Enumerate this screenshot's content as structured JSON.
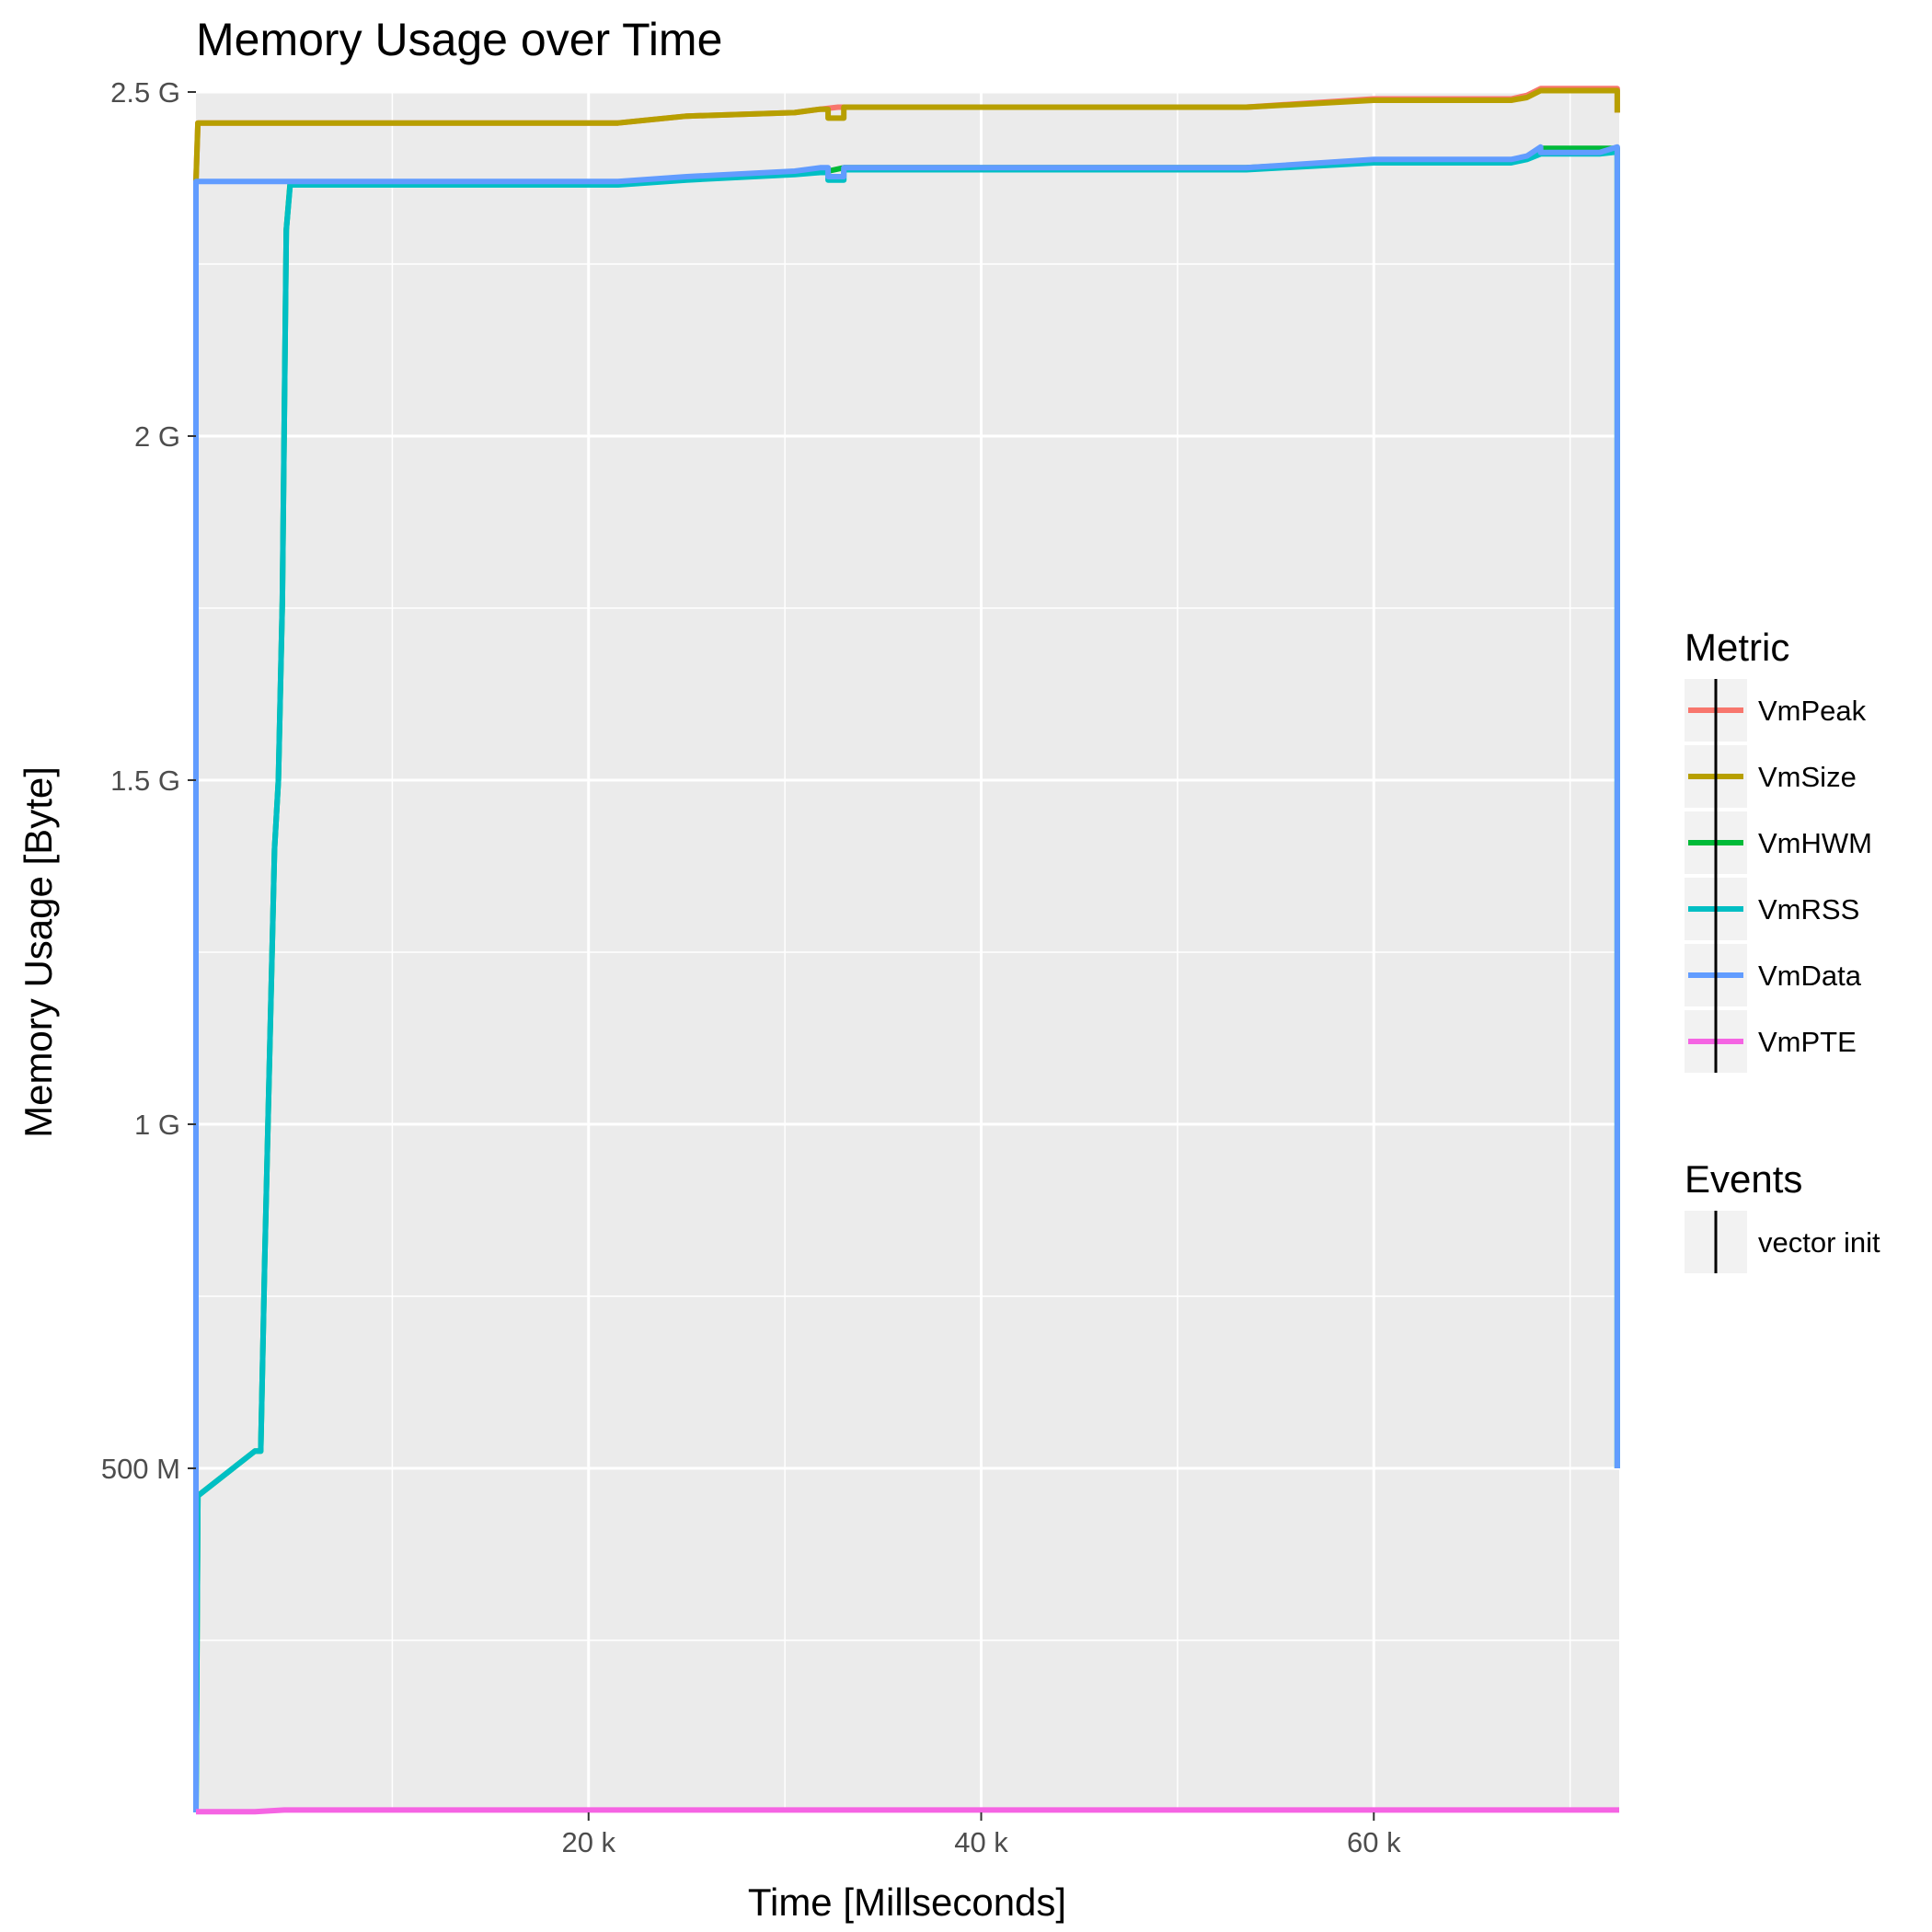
{
  "chart_data": {
    "type": "line",
    "title": "Memory Usage over Time",
    "xlabel": "Time [Millseconds]",
    "ylabel": "Memory Usage [Byte]",
    "xlim": [
      0,
      72500
    ],
    "ylim": [
      0,
      2500000000
    ],
    "x_ticks": [
      {
        "value": 20000,
        "label": "20 k"
      },
      {
        "value": 40000,
        "label": "40 k"
      },
      {
        "value": 60000,
        "label": "60 k"
      }
    ],
    "y_ticks": [
      {
        "value": 500000000,
        "label": "500 M"
      },
      {
        "value": 1000000000,
        "label": "1 G"
      },
      {
        "value": 1500000000,
        "label": "1.5 G"
      },
      {
        "value": 2000000000,
        "label": "2 G"
      },
      {
        "value": 2500000000,
        "label": "2.5 G"
      }
    ],
    "grid": true,
    "legend_position": "right",
    "legend_title": "Metric",
    "events_title": "Events",
    "series": [
      {
        "name": "VmPeak",
        "color": "#F8766D",
        "points": [
          [
            0,
            2370000000
          ],
          [
            100,
            2455000000
          ],
          [
            21500,
            2455000000
          ],
          [
            25000,
            2465000000
          ],
          [
            30500,
            2470000000
          ],
          [
            31800,
            2475000000
          ],
          [
            32700,
            2478000000
          ],
          [
            53500,
            2478000000
          ],
          [
            60000,
            2490000000
          ],
          [
            67000,
            2490000000
          ],
          [
            67800,
            2495000000
          ],
          [
            68500,
            2505000000
          ],
          [
            71500,
            2505000000
          ],
          [
            72400,
            2505000000
          ],
          [
            72400,
            2470000000
          ]
        ]
      },
      {
        "name": "VmSize",
        "color": "#B79F00",
        "points": [
          [
            0,
            2370000000
          ],
          [
            100,
            2455000000
          ],
          [
            21500,
            2455000000
          ],
          [
            25000,
            2465000000
          ],
          [
            30500,
            2470000000
          ],
          [
            31800,
            2475000000
          ],
          [
            32200,
            2475000000
          ],
          [
            32200,
            2462000000
          ],
          [
            33000,
            2462000000
          ],
          [
            33000,
            2478000000
          ],
          [
            53500,
            2478000000
          ],
          [
            60000,
            2488000000
          ],
          [
            67000,
            2488000000
          ],
          [
            67800,
            2492000000
          ],
          [
            68500,
            2502000000
          ],
          [
            72400,
            2502000000
          ],
          [
            72400,
            2470000000
          ]
        ]
      },
      {
        "name": "VmHWM",
        "color": "#00BA38",
        "points": [
          [
            0,
            0
          ],
          [
            100,
            460000000
          ],
          [
            3000,
            525000000
          ],
          [
            3300,
            525000000
          ],
          [
            3500,
            800000000
          ],
          [
            4000,
            1400000000
          ],
          [
            4200,
            1500000000
          ],
          [
            4400,
            1760000000
          ],
          [
            4600,
            2300000000
          ],
          [
            4800,
            2368000000
          ],
          [
            21500,
            2368000000
          ],
          [
            25000,
            2375000000
          ],
          [
            30500,
            2382000000
          ],
          [
            31800,
            2385000000
          ],
          [
            32200,
            2385000000
          ],
          [
            33000,
            2390000000
          ],
          [
            53500,
            2390000000
          ],
          [
            60000,
            2400000000
          ],
          [
            67000,
            2400000000
          ],
          [
            67800,
            2405000000
          ],
          [
            68500,
            2418000000
          ],
          [
            72400,
            2418000000
          ],
          [
            72400,
            500000000
          ]
        ]
      },
      {
        "name": "VmRSS",
        "color": "#00BFC4",
        "points": [
          [
            0,
            0
          ],
          [
            100,
            460000000
          ],
          [
            3000,
            525000000
          ],
          [
            3300,
            525000000
          ],
          [
            3500,
            800000000
          ],
          [
            4000,
            1400000000
          ],
          [
            4200,
            1500000000
          ],
          [
            4400,
            1760000000
          ],
          [
            4600,
            2300000000
          ],
          [
            4800,
            2365000000
          ],
          [
            21500,
            2365000000
          ],
          [
            25000,
            2372000000
          ],
          [
            30500,
            2380000000
          ],
          [
            31800,
            2383000000
          ],
          [
            32200,
            2383000000
          ],
          [
            32200,
            2372000000
          ],
          [
            33000,
            2372000000
          ],
          [
            33000,
            2387000000
          ],
          [
            53500,
            2387000000
          ],
          [
            60000,
            2397000000
          ],
          [
            67000,
            2397000000
          ],
          [
            67800,
            2402000000
          ],
          [
            68500,
            2410000000
          ],
          [
            71500,
            2410000000
          ],
          [
            72400,
            2413000000
          ],
          [
            72400,
            500000000
          ]
        ]
      },
      {
        "name": "VmData",
        "color": "#619CFF",
        "points": [
          [
            0,
            0
          ],
          [
            0,
            2370000000
          ],
          [
            21500,
            2370000000
          ],
          [
            25000,
            2377000000
          ],
          [
            30500,
            2385000000
          ],
          [
            31800,
            2390000000
          ],
          [
            32200,
            2390000000
          ],
          [
            32200,
            2377000000
          ],
          [
            33000,
            2377000000
          ],
          [
            33000,
            2390000000
          ],
          [
            53500,
            2390000000
          ],
          [
            60000,
            2402000000
          ],
          [
            67000,
            2402000000
          ],
          [
            67800,
            2407000000
          ],
          [
            68500,
            2420000000
          ],
          [
            68500,
            2412000000
          ],
          [
            71500,
            2412000000
          ],
          [
            72400,
            2420000000
          ],
          [
            72400,
            500000000
          ]
        ]
      },
      {
        "name": "VmPTE",
        "color": "#F564E3",
        "points": [
          [
            0,
            1000000
          ],
          [
            3000,
            1000000
          ],
          [
            4500,
            3500000
          ],
          [
            72500,
            3500000
          ]
        ]
      }
    ],
    "events": [
      {
        "name": "vector init",
        "color": "#000000"
      }
    ]
  }
}
